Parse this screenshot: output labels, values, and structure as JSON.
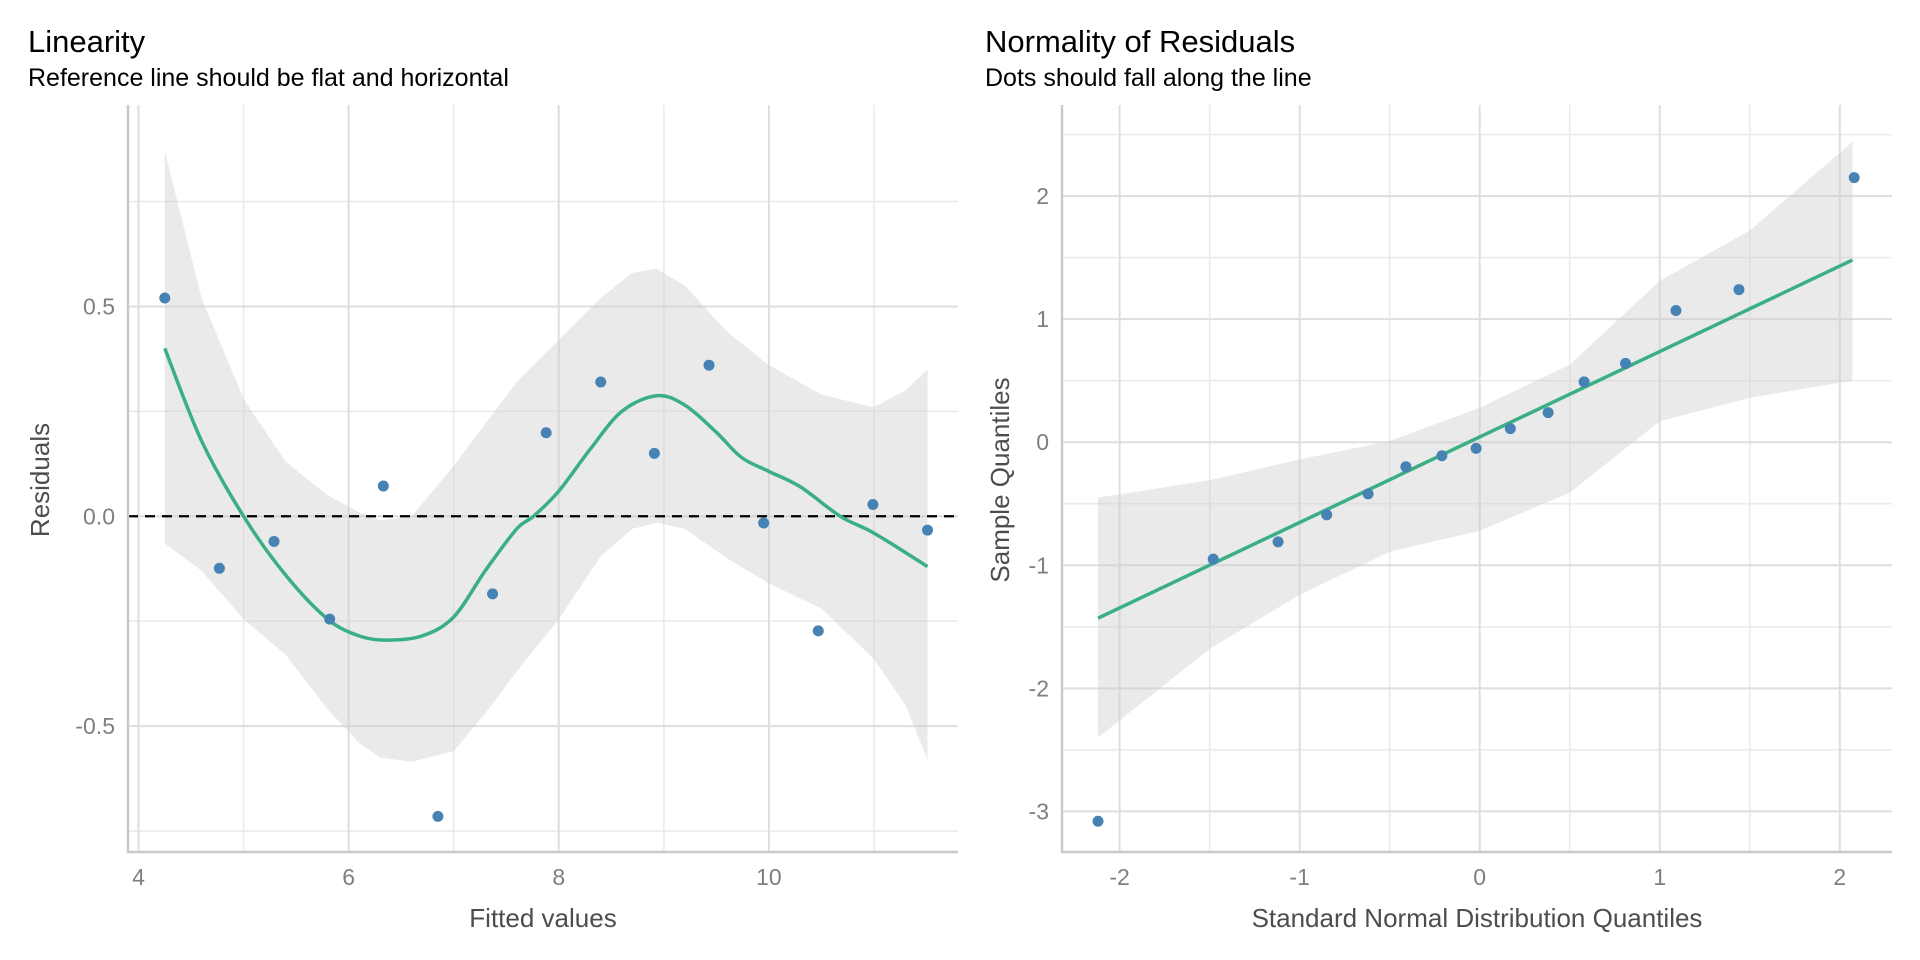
{
  "chart_data": [
    {
      "type": "scatter",
      "id": "linearity",
      "title": "Linearity",
      "subtitle": "Reference line should be flat and horizontal",
      "xlabel": "Fitted values",
      "ylabel": "Residuals",
      "xlim": [
        3.9,
        11.8
      ],
      "ylim": [
        -0.8,
        0.98
      ],
      "x_ticks": [
        4,
        6,
        8,
        10
      ],
      "x_tick_labels": [
        "4",
        "6",
        "8",
        "10"
      ],
      "x_minor": [
        5,
        7,
        9,
        11
      ],
      "y_ticks": [
        -0.5,
        0.0,
        0.5
      ],
      "y_tick_labels": [
        "-0.5",
        "0.0",
        "0.5"
      ],
      "y_minor": [
        -0.75,
        -0.25,
        0.25,
        0.75
      ],
      "grid": true,
      "reference_line": {
        "y": 0,
        "style": "dashed",
        "color": "#000000"
      },
      "points": {
        "color": "#4682b4",
        "x": [
          4.25,
          4.77,
          5.29,
          5.82,
          6.33,
          6.85,
          7.37,
          7.88,
          8.4,
          8.91,
          9.43,
          9.95,
          10.47,
          10.99,
          11.51
        ],
        "y": [
          0.52,
          -0.124,
          -0.06,
          -0.245,
          0.072,
          -0.715,
          -0.185,
          0.199,
          0.32,
          0.15,
          0.36,
          -0.016,
          -0.273,
          0.028,
          -0.033
        ]
      },
      "smooth": {
        "color": "#3aaf85",
        "x": [
          4.25,
          4.6,
          5.0,
          5.4,
          5.8,
          6.1,
          6.37,
          6.7,
          7.0,
          7.3,
          7.6,
          7.76,
          8.0,
          8.3,
          8.6,
          8.93,
          9.2,
          9.5,
          9.74,
          10.0,
          10.3,
          10.68,
          11.0,
          11.51
        ],
        "y": [
          0.4,
          0.18,
          0.0,
          -0.14,
          -0.245,
          -0.285,
          -0.295,
          -0.285,
          -0.24,
          -0.13,
          -0.03,
          0.0,
          0.06,
          0.16,
          0.25,
          0.287,
          0.265,
          0.2,
          0.14,
          0.107,
          0.07,
          0.0,
          -0.04,
          -0.12
        ]
      },
      "ci_band": {
        "color": "#cccccc",
        "x": [
          4.25,
          4.6,
          5.0,
          5.4,
          5.8,
          6.1,
          6.3,
          6.6,
          7.0,
          7.3,
          7.6,
          8.0,
          8.4,
          8.7,
          8.93,
          9.2,
          9.6,
          10.0,
          10.5,
          11.0,
          11.3,
          11.51
        ],
        "upper": [
          0.87,
          0.52,
          0.28,
          0.13,
          0.05,
          0.01,
          -0.01,
          0.0,
          0.12,
          0.22,
          0.32,
          0.42,
          0.52,
          0.58,
          0.59,
          0.55,
          0.44,
          0.36,
          0.29,
          0.26,
          0.3,
          0.35
        ],
        "lower": [
          -0.065,
          -0.13,
          -0.245,
          -0.33,
          -0.46,
          -0.54,
          -0.575,
          -0.585,
          -0.56,
          -0.47,
          -0.37,
          -0.245,
          -0.095,
          -0.03,
          -0.015,
          -0.03,
          -0.1,
          -0.16,
          -0.22,
          -0.34,
          -0.45,
          -0.58
        ]
      }
    },
    {
      "type": "scatter",
      "id": "normality",
      "title": "Normality of Residuals",
      "subtitle": "Dots should fall along the line",
      "xlabel": "Standard Normal Distribution Quantiles",
      "ylabel": "Sample Quantiles",
      "xlim": [
        -2.32,
        2.29
      ],
      "ylim": [
        -3.33,
        2.74
      ],
      "x_ticks": [
        -2,
        -1,
        0,
        1,
        2
      ],
      "x_tick_labels": [
        "-2",
        "-1",
        "0",
        "1",
        "2"
      ],
      "x_minor": [
        -1.5,
        -0.5,
        0.5,
        1.5
      ],
      "y_ticks": [
        -3,
        -2,
        -1,
        0,
        1,
        2
      ],
      "y_tick_labels": [
        "-3",
        "-2",
        "-1",
        "0",
        "1",
        "2"
      ],
      "y_minor": [
        -2.5,
        -1.5,
        -0.5,
        0.5,
        1.5,
        2.5
      ],
      "grid": true,
      "points": {
        "color": "#4682b4",
        "x": [
          -2.12,
          -1.48,
          -1.12,
          -0.85,
          -0.62,
          -0.41,
          -0.21,
          -0.02,
          0.17,
          0.38,
          0.58,
          0.81,
          1.09,
          1.44,
          2.08
        ],
        "y": [
          -3.08,
          -0.95,
          -0.81,
          -0.59,
          -0.42,
          -0.2,
          -0.11,
          -0.05,
          0.11,
          0.24,
          0.49,
          0.64,
          1.07,
          1.24,
          2.15
        ]
      },
      "fit_line": {
        "color": "#3aaf85",
        "x": [
          -2.12,
          2.07
        ],
        "y": [
          -1.43,
          1.48
        ]
      },
      "ci_band": {
        "color": "#cccccc",
        "x": [
          -2.12,
          -1.5,
          -1.0,
          -0.5,
          0.0,
          0.5,
          1.0,
          1.5,
          2.07
        ],
        "upper": [
          -0.45,
          -0.31,
          -0.14,
          0.01,
          0.28,
          0.63,
          1.31,
          1.72,
          2.44
        ],
        "lower": [
          -2.4,
          -1.68,
          -1.24,
          -0.89,
          -0.72,
          -0.41,
          0.17,
          0.36,
          0.5
        ]
      }
    }
  ]
}
